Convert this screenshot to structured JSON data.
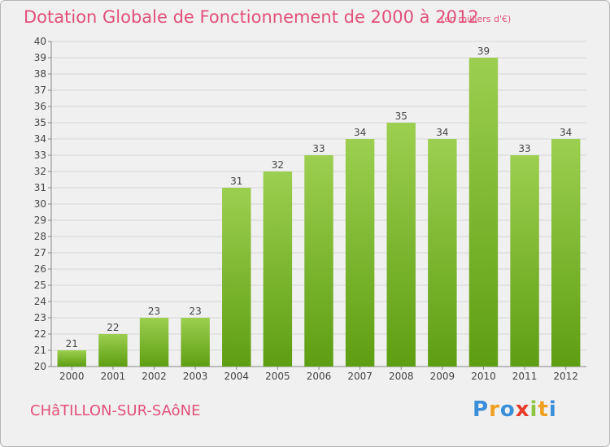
{
  "header": {
    "title": "Dotation Globale de Fonctionnement de 2000 à 2012",
    "unit": "(en milliers d'€)"
  },
  "footer": {
    "commune": "CHâTILLON-SUR-SAôNE",
    "logo_letters": [
      "P",
      "r",
      "o",
      "x",
      "i",
      "t",
      "i"
    ],
    "logo_colors": [
      "#3a8fd8",
      "#f0a020",
      "#3a8fd8",
      "#e83a2a",
      "#8cc63e",
      "#f0a020",
      "#3a8fd8"
    ]
  },
  "chart_data": {
    "type": "bar",
    "categories": [
      "2000",
      "2001",
      "2002",
      "2003",
      "2004",
      "2005",
      "2006",
      "2007",
      "2008",
      "2009",
      "2010",
      "2011",
      "2012"
    ],
    "values": [
      21,
      22,
      23,
      23,
      31,
      32,
      33,
      34,
      35,
      34,
      39,
      33,
      34
    ],
    "ylim": [
      20,
      40
    ],
    "yticks": [
      20,
      21,
      22,
      23,
      24,
      25,
      26,
      27,
      28,
      29,
      30,
      31,
      32,
      33,
      34,
      35,
      36,
      37,
      38,
      39,
      40
    ],
    "grid": true,
    "bar_color_top": "#9ccf50",
    "bar_color_bottom": "#5e9e12"
  }
}
